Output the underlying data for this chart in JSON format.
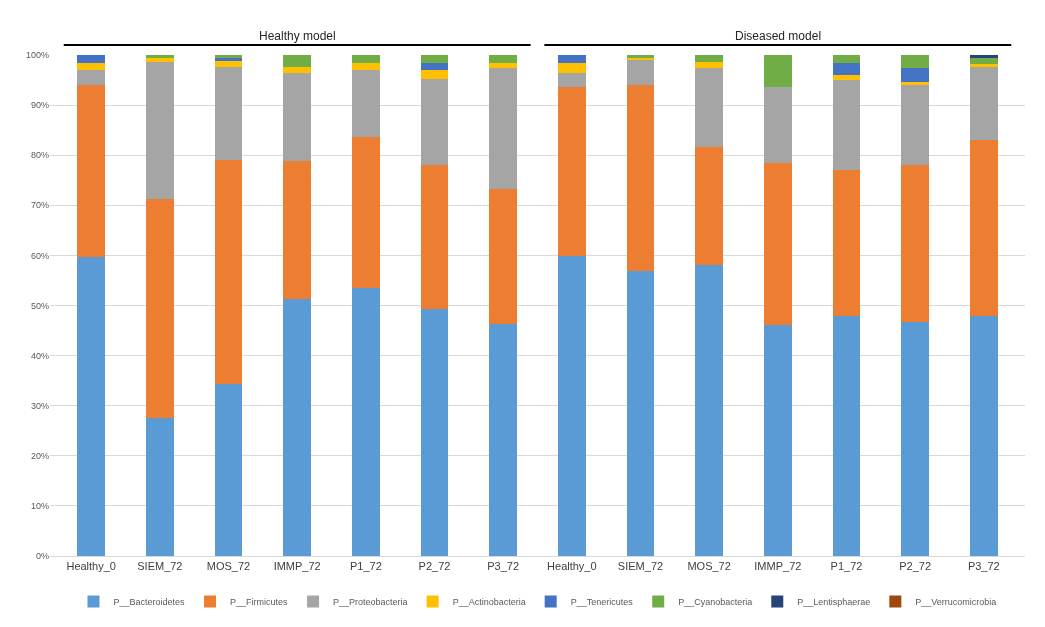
{
  "chart_data": {
    "type": "bar",
    "stacked": true,
    "categories": [
      "Healthy_0",
      "SIEM_72",
      "MOS_72",
      "IMMP_72",
      "P1_72",
      "P2_72",
      "P3_72",
      "Healthy_0",
      "SIEM_72",
      "MOS_72",
      "IMMP_72",
      "P1_72",
      "P2_72",
      "P3_72"
    ],
    "series": [
      {
        "name": "P__Bacteroidetes",
        "color": "#5b9bd5",
        "values": [
          59.7,
          27.5,
          34.3,
          51.3,
          53.5,
          49.3,
          46.3,
          59.9,
          56.9,
          58.1,
          46.1,
          47.9,
          46.7,
          47.9
        ]
      },
      {
        "name": "P__Firmicutes",
        "color": "#ed7d31",
        "values": [
          34.3,
          43.8,
          44.7,
          27.5,
          30.2,
          28.7,
          27.0,
          33.8,
          37.1,
          23.5,
          32.3,
          29.1,
          31.3,
          35.1
        ]
      },
      {
        "name": "P__Proteobacteria",
        "color": "#a5a5a5",
        "values": [
          3.1,
          27.4,
          18.7,
          17.7,
          13.4,
          17.2,
          24.1,
          2.8,
          5.0,
          15.8,
          15.3,
          18.1,
          16.0,
          14.7
        ]
      },
      {
        "name": "P__Actinobacteria",
        "color": "#ffc000",
        "values": [
          1.3,
          0.8,
          1.1,
          1.2,
          1.3,
          1.9,
          1.0,
          1.9,
          0.4,
          1.3,
          0,
          1.0,
          0.7,
          0.5
        ]
      },
      {
        "name": "P__Tenericutes",
        "color": "#4472c4",
        "values": [
          1.6,
          0,
          0.6,
          0,
          0,
          1.4,
          0,
          1.6,
          0,
          0,
          0,
          2.3,
          2.7,
          0
        ]
      },
      {
        "name": "P__Cyanobacteria",
        "color": "#70ad47",
        "values": [
          0,
          0.5,
          0.6,
          2.3,
          1.6,
          1.5,
          1.6,
          0,
          0.6,
          1.3,
          6.3,
          1.6,
          2.6,
          1.2
        ]
      },
      {
        "name": "P__Lentisphaerae",
        "color": "#264478",
        "values": [
          0,
          0,
          0,
          0,
          0,
          0,
          0,
          0,
          0,
          0,
          0,
          0,
          0,
          0.6
        ]
      },
      {
        "name": "P__Verrucomicrobia",
        "color": "#9e480e",
        "values": [
          0,
          0,
          0,
          0,
          0,
          0,
          0,
          0,
          0,
          0,
          0,
          0,
          0,
          0
        ]
      }
    ],
    "ylim": [
      0,
      100
    ],
    "yticks": [
      {
        "value": 0,
        "label": "0%"
      },
      {
        "value": 10,
        "label": "10%"
      },
      {
        "value": 20,
        "label": "20%"
      },
      {
        "value": 30,
        "label": "30%"
      },
      {
        "value": 40,
        "label": "40%"
      },
      {
        "value": 50,
        "label": "50%"
      },
      {
        "value": 60,
        "label": "60%"
      },
      {
        "value": 70,
        "label": "70%"
      },
      {
        "value": 80,
        "label": "80%"
      },
      {
        "value": 90,
        "label": "90%"
      },
      {
        "value": 100,
        "label": "100%"
      }
    ],
    "annotations": [
      "Healthy model",
      "Diseased model"
    ],
    "grid": "y",
    "legend": "bottom"
  }
}
